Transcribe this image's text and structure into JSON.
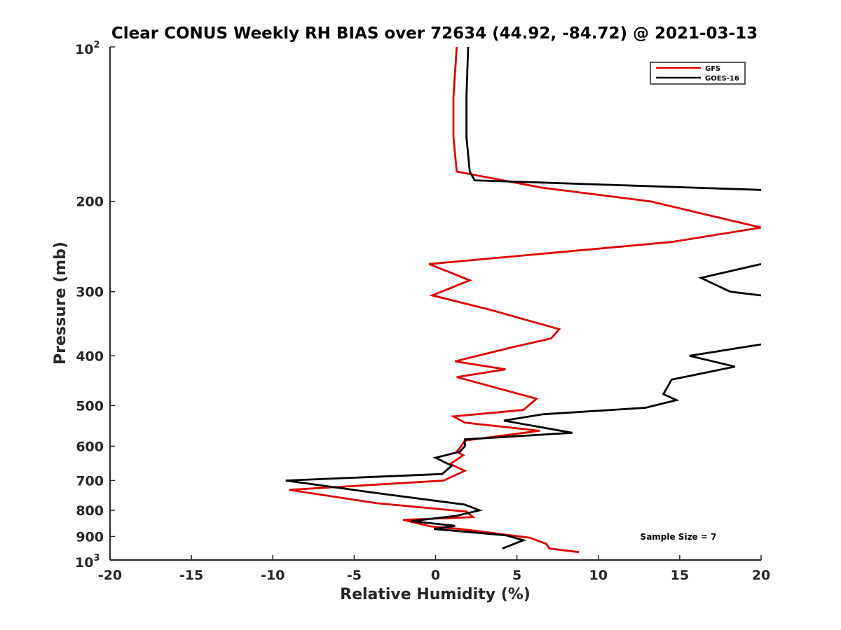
{
  "chart_data": {
    "type": "line",
    "title": "Clear CONUS Weekly RH BIAS over 72634 (44.92, -84.72) @ 2021-03-13",
    "xlabel": "Relative Humidity (%)",
    "ylabel": "Pressure (mb)",
    "xlim": [
      -20,
      20
    ],
    "ylim": [
      100,
      1000
    ],
    "yscale": "log",
    "y_reversed": true,
    "x_ticks": [
      -20,
      -15,
      -10,
      -5,
      0,
      5,
      10,
      15,
      20
    ],
    "x_tick_labels": [
      "-20",
      "-15",
      "-10",
      "-5",
      "0",
      "5",
      "10",
      "15",
      "20"
    ],
    "y_ticks": [
      200,
      300,
      400,
      500,
      600,
      700,
      800,
      900
    ],
    "y_tick_labels": [
      "200",
      "300",
      "400",
      "500",
      "600",
      "700",
      "800",
      "900"
    ],
    "y_end_labels": {
      "top_base": "10",
      "top_exp": "2",
      "bottom_base": "10",
      "bottom_exp": "3"
    },
    "legend": {
      "position": "top-right"
    },
    "annotation": "Sample Size = 7",
    "series": [
      {
        "name": "GFS",
        "color": "#dd0000",
        "points": [
          [
            1.3,
            100
          ],
          [
            1.1,
            125
          ],
          [
            1.1,
            150
          ],
          [
            1.3,
            175
          ],
          [
            6.5,
            188
          ],
          [
            13.2,
            200
          ],
          [
            20,
            225
          ],
          [
            14.5,
            240
          ],
          [
            -0.4,
            265
          ],
          [
            2.1,
            285
          ],
          [
            -0.2,
            305
          ],
          [
            3.3,
            325
          ],
          [
            7.6,
            355
          ],
          [
            7.1,
            370
          ],
          [
            4.7,
            385
          ],
          [
            1.2,
            410
          ],
          [
            4.3,
            425
          ],
          [
            1.3,
            440
          ],
          [
            6.2,
            485
          ],
          [
            5.4,
            510
          ],
          [
            1.1,
            525
          ],
          [
            1.8,
            540
          ],
          [
            6.4,
            560
          ],
          [
            1.8,
            585
          ],
          [
            1.5,
            605
          ],
          [
            1.3,
            615
          ],
          [
            1.7,
            625
          ],
          [
            0.9,
            650
          ],
          [
            1.8,
            670
          ],
          [
            0.5,
            700
          ],
          [
            -9.0,
            730
          ],
          [
            -3.6,
            775
          ],
          [
            1.9,
            805
          ],
          [
            2.3,
            825
          ],
          [
            -2.0,
            835
          ],
          [
            -0.3,
            860
          ],
          [
            1.5,
            870
          ],
          [
            4.0,
            890
          ],
          [
            5.8,
            905
          ],
          [
            6.8,
            930
          ],
          [
            7.0,
            950
          ],
          [
            8.8,
            965
          ]
        ]
      },
      {
        "name": "GOES-16",
        "color": "#000000",
        "points": [
          [
            2.0,
            100
          ],
          [
            1.9,
            125
          ],
          [
            1.9,
            150
          ],
          [
            2.1,
            175
          ],
          [
            2.4,
            182
          ],
          [
            20,
            190
          ],
          null,
          [
            20,
            265
          ],
          [
            16.3,
            282
          ],
          [
            18.1,
            300
          ],
          [
            20,
            305
          ],
          null,
          [
            20,
            380
          ],
          [
            15.6,
            400
          ],
          [
            18.4,
            420
          ],
          [
            14.5,
            445
          ],
          [
            14.0,
            475
          ],
          [
            14.8,
            488
          ],
          [
            12.9,
            505
          ],
          [
            6.6,
            520
          ],
          [
            4.2,
            535
          ],
          [
            8.4,
            565
          ],
          [
            1.8,
            582
          ],
          [
            1.8,
            600
          ],
          [
            1.5,
            615
          ],
          [
            0.0,
            632
          ],
          [
            1.0,
            655
          ],
          [
            0.4,
            680
          ],
          [
            -9.2,
            700
          ],
          [
            -3.7,
            740
          ],
          [
            1.8,
            780
          ],
          [
            2.7,
            800
          ],
          [
            1.3,
            820
          ],
          [
            -1.5,
            840
          ],
          [
            1.2,
            858
          ],
          [
            -0.1,
            870
          ],
          [
            4.3,
            895
          ],
          [
            5.4,
            915
          ],
          [
            4.1,
            950
          ]
        ]
      }
    ]
  }
}
